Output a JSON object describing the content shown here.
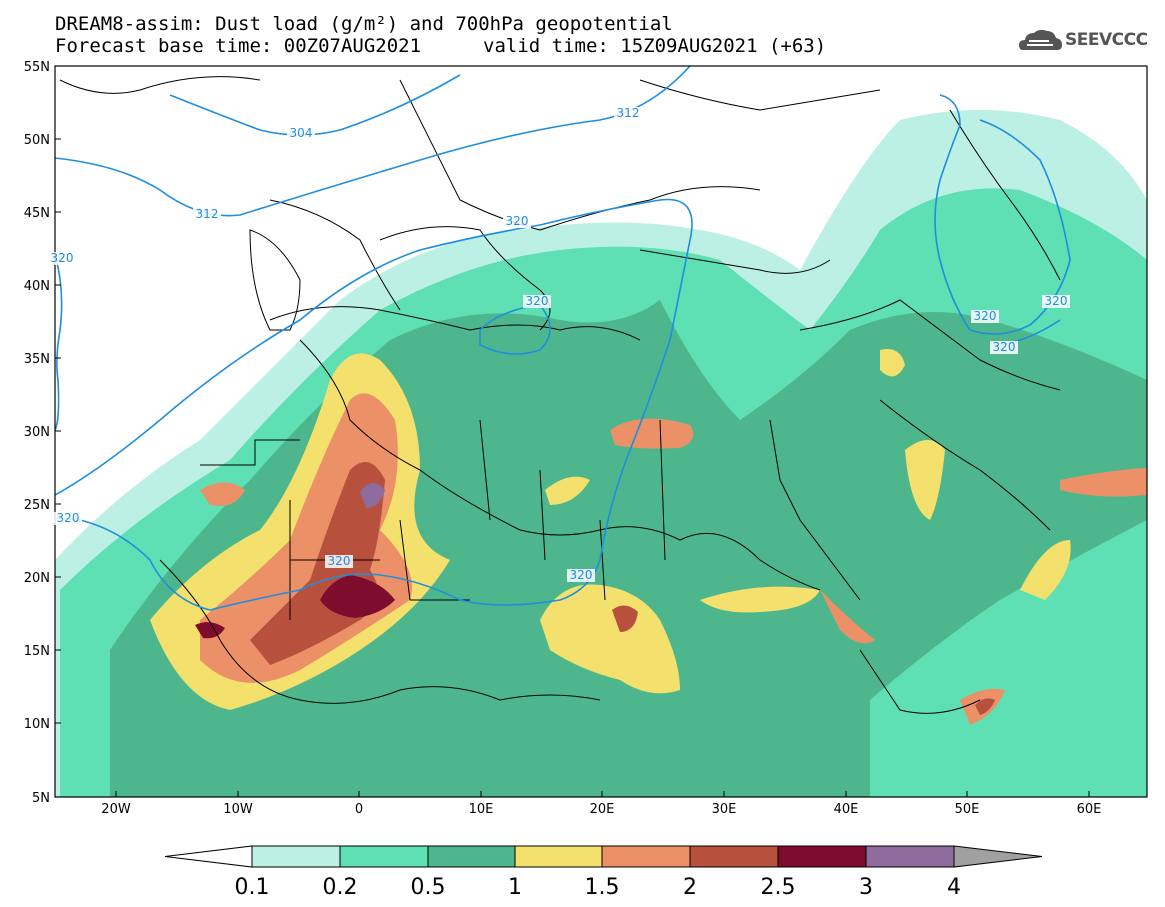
{
  "title_line1": "DREAM8-assim: Dust load (g/m²) and 700hPa geopotential",
  "title_line2_left": "Forecast base time: 00Z07AUG2021",
  "title_line2_right": "valid time: 15Z09AUG2021 (+63)",
  "logo": {
    "text": "SEEVCCC",
    "icon": "cloud-icon"
  },
  "map": {
    "lat_labels": [
      "55N",
      "50N",
      "45N",
      "40N",
      "35N",
      "30N",
      "25N",
      "20N",
      "15N",
      "10N",
      "5N"
    ],
    "lon_labels": [
      "20W",
      "10W",
      "0",
      "10E",
      "20E",
      "30E",
      "40E",
      "50E",
      "60E"
    ],
    "contour_labels": [
      "304",
      "312",
      "312",
      "320",
      "320",
      "320",
      "320",
      "320",
      "320",
      "320",
      "320",
      "320"
    ],
    "contour_color": "#1e8ee0"
  },
  "colorbar": {
    "labels": [
      "0.1",
      "0.2",
      "0.5",
      "1",
      "1.5",
      "2",
      "2.5",
      "3",
      "4"
    ],
    "colors": [
      "#bdf0e4",
      "#5ee0b4",
      "#4eb68c",
      "#f4e06c",
      "#ec9068",
      "#b8503e",
      "#7e0c2c",
      "#8e6c9e",
      "#a0a0a0"
    ]
  }
}
